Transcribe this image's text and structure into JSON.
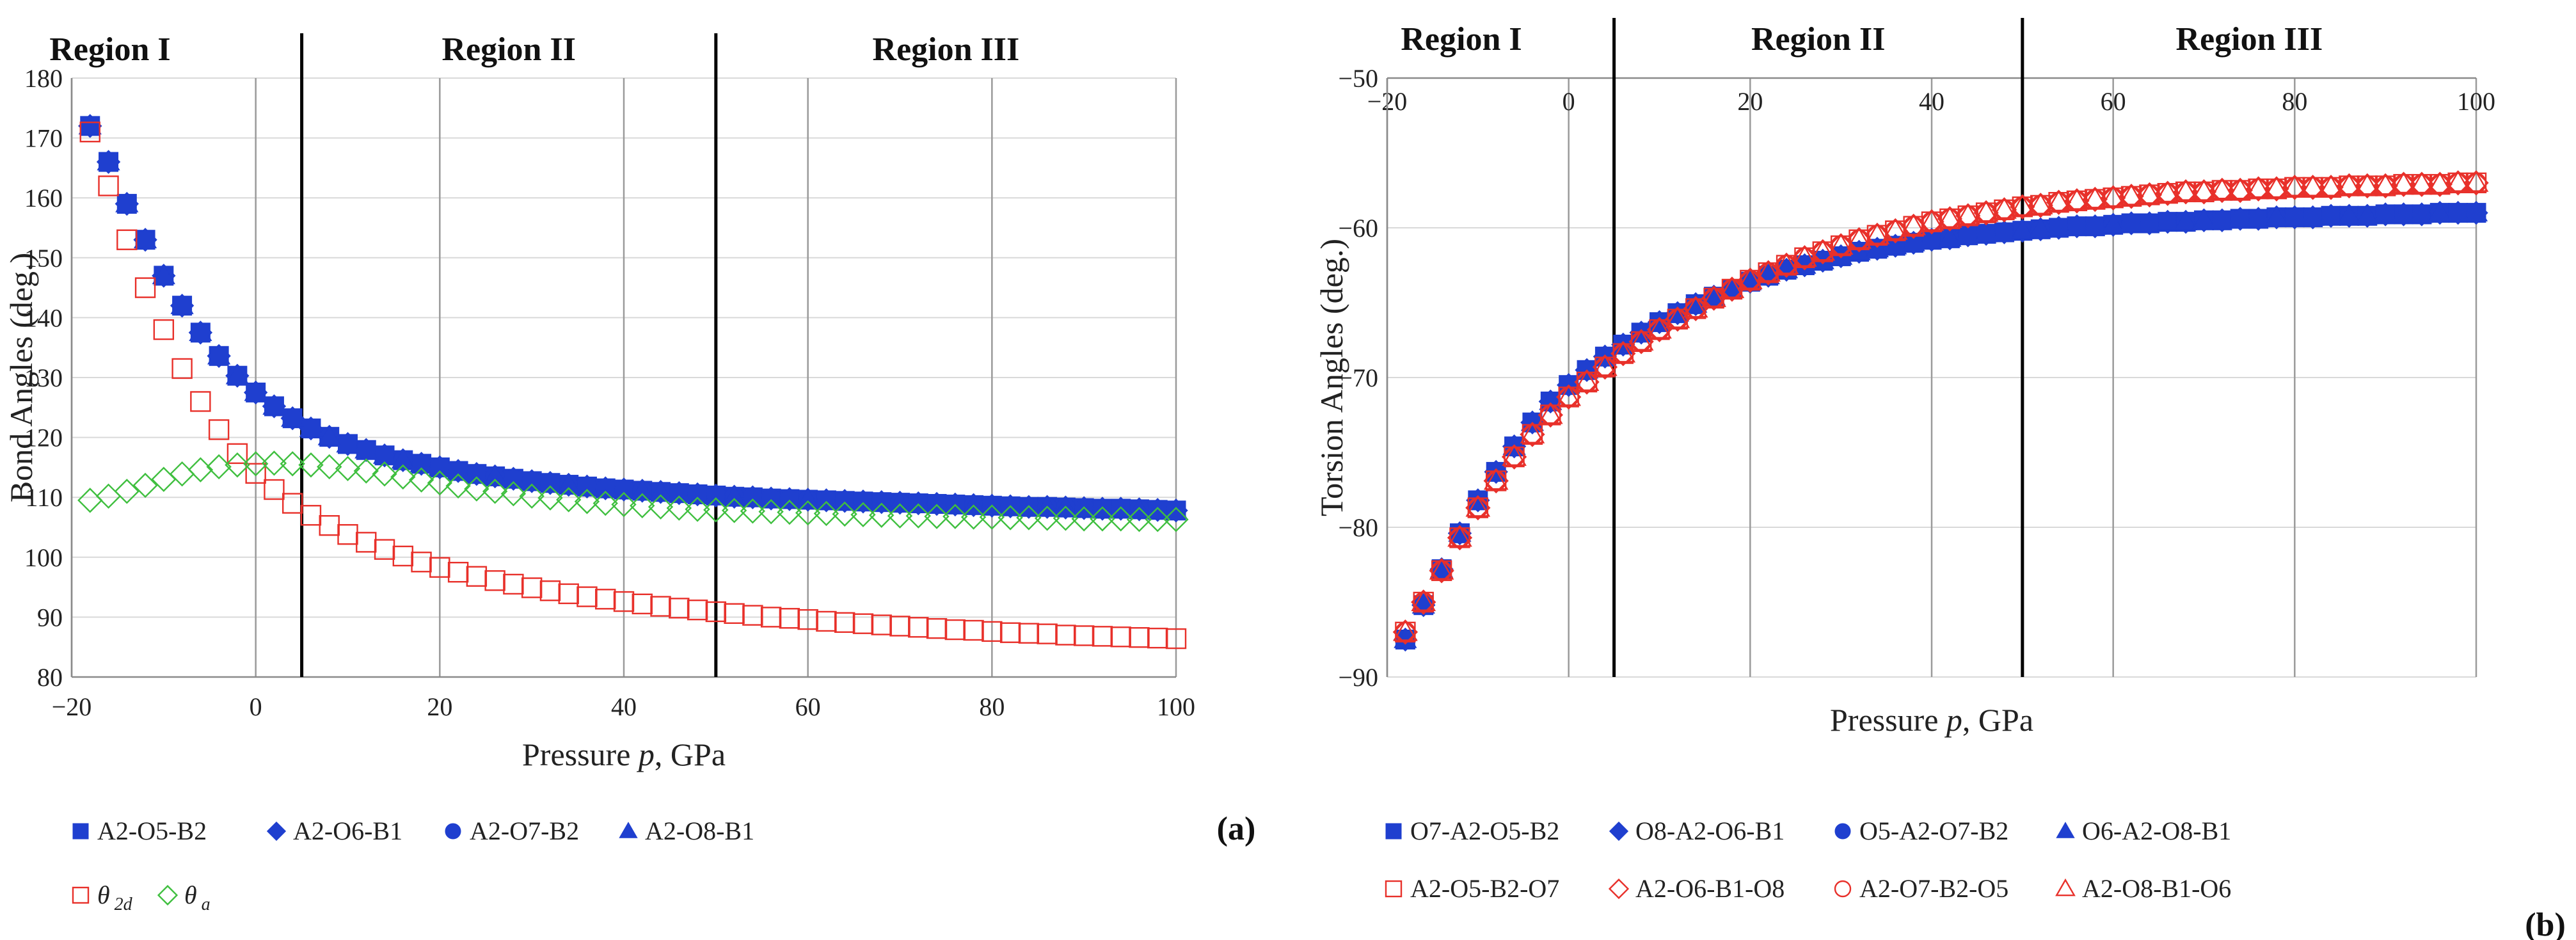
{
  "chart_data": [
    {
      "id": "a",
      "type": "scatter",
      "panel_label": "(a)",
      "title": "",
      "xlabel_main": "Pressure ",
      "xlabel_var": "p",
      "xlabel_tail": ", GPa",
      "ylabel": "Bond Angles (deg.)",
      "xlim": [
        -20,
        100
      ],
      "ylim": [
        80,
        180
      ],
      "xticks": [
        -20,
        0,
        20,
        40,
        60,
        80,
        100
      ],
      "xtick_labels": [
        "−20",
        "0",
        "20",
        "40",
        "60",
        "80",
        "100"
      ],
      "yticks": [
        80,
        90,
        100,
        110,
        120,
        130,
        140,
        150,
        160,
        170,
        180
      ],
      "region_boundaries": [
        5,
        50
      ],
      "regions": [
        {
          "label": "Region I",
          "from": -20,
          "to": 5
        },
        {
          "label": "Region II",
          "from": 5,
          "to": 50
        },
        {
          "label": "Region III",
          "from": 50,
          "to": 100
        }
      ],
      "x": [
        -18,
        -16,
        -14,
        -12,
        -10,
        -8,
        -6,
        -4,
        -2,
        0,
        2,
        4,
        6,
        8,
        10,
        12,
        14,
        16,
        18,
        20,
        22,
        24,
        26,
        28,
        30,
        32,
        34,
        36,
        38,
        40,
        42,
        44,
        46,
        48,
        50,
        52,
        54,
        56,
        58,
        60,
        62,
        64,
        66,
        68,
        70,
        72,
        74,
        76,
        78,
        80,
        82,
        84,
        86,
        88,
        90,
        92,
        94,
        96,
        98,
        100
      ],
      "series": [
        {
          "name": "A2-O5-B2",
          "color": "#1f3fcf",
          "marker": "square",
          "filled": true,
          "values": [
            172,
            166,
            159,
            153,
            147,
            142,
            137.5,
            133.6,
            130.3,
            127.5,
            125.2,
            123.2,
            121.5,
            120.1,
            118.9,
            117.9,
            117.0,
            116.2,
            115.6,
            115.0,
            114.4,
            113.9,
            113.5,
            113.1,
            112.7,
            112.4,
            112.1,
            111.8,
            111.5,
            111.3,
            111.1,
            110.9,
            110.7,
            110.5,
            110.3,
            110.1,
            110.0,
            109.8,
            109.7,
            109.6,
            109.5,
            109.4,
            109.3,
            109.2,
            109.1,
            109.0,
            108.9,
            108.8,
            108.7,
            108.6,
            108.5,
            108.4,
            108.4,
            108.3,
            108.2,
            108.1,
            108.1,
            108.0,
            107.9,
            107.8
          ]
        },
        {
          "name": "A2-O6-B1",
          "color": "#1f3fcf",
          "marker": "diamond",
          "filled": true,
          "values_same_as": "A2-O5-B2"
        },
        {
          "name": "A2-O7-B2",
          "color": "#1f3fcf",
          "marker": "circle",
          "filled": true,
          "values_same_as": "A2-O5-B2"
        },
        {
          "name": "A2-O8-B1",
          "color": "#1f3fcf",
          "marker": "triangle",
          "filled": true,
          "values_same_as": "A2-O5-B2"
        },
        {
          "name": "θ2d",
          "legend_main": "θ",
          "legend_sub": "2d",
          "color": "#e8302a",
          "marker": "square",
          "filled": false,
          "values": [
            171,
            162,
            153,
            145,
            138,
            131.5,
            126,
            121.3,
            117.3,
            114.0,
            111.3,
            109.0,
            107.0,
            105.3,
            103.8,
            102.5,
            101.3,
            100.2,
            99.2,
            98.3,
            97.5,
            96.8,
            96.1,
            95.5,
            94.9,
            94.4,
            93.9,
            93.4,
            93.0,
            92.6,
            92.2,
            91.8,
            91.5,
            91.2,
            90.9,
            90.6,
            90.3,
            90.0,
            89.8,
            89.6,
            89.3,
            89.1,
            88.9,
            88.7,
            88.5,
            88.3,
            88.1,
            87.9,
            87.8,
            87.6,
            87.4,
            87.3,
            87.2,
            87.0,
            86.9,
            86.8,
            86.7,
            86.6,
            86.5,
            86.4
          ]
        },
        {
          "name": "θa",
          "legend_main": "θ",
          "legend_sub": "a",
          "color": "#3fbf3f",
          "marker": "diamond",
          "filled": false,
          "values": [
            109.5,
            110.2,
            111.0,
            112.0,
            113.0,
            113.9,
            114.6,
            115.1,
            115.4,
            115.6,
            115.7,
            115.6,
            115.4,
            115.1,
            114.8,
            114.4,
            113.9,
            113.4,
            112.9,
            112.4,
            111.9,
            111.4,
            111.0,
            110.6,
            110.2,
            109.9,
            109.6,
            109.3,
            109.0,
            108.8,
            108.6,
            108.4,
            108.2,
            108.0,
            107.9,
            107.8,
            107.7,
            107.6,
            107.5,
            107.4,
            107.3,
            107.2,
            107.1,
            107.0,
            106.9,
            106.9,
            106.8,
            106.8,
            106.7,
            106.7,
            106.6,
            106.6,
            106.5,
            106.5,
            106.4,
            106.4,
            106.4,
            106.3,
            106.3,
            106.3
          ]
        }
      ]
    },
    {
      "id": "b",
      "type": "scatter",
      "panel_label": "(b)",
      "title": "",
      "xlabel_main": "Pressure ",
      "xlabel_var": "p",
      "xlabel_tail": ", GPa",
      "ylabel": "Torsion Angles (deg.)",
      "xlim": [
        -20,
        100
      ],
      "ylim": [
        -90,
        -50
      ],
      "x_axis_position": "top",
      "xticks": [
        -20,
        0,
        20,
        40,
        60,
        80,
        100
      ],
      "xtick_labels": [
        "−20",
        "0",
        "20",
        "40",
        "60",
        "80",
        "100"
      ],
      "yticks": [
        -90,
        -80,
        -70,
        -60,
        -50
      ],
      "ytick_labels": [
        "−90",
        "−80",
        "−70",
        "−60",
        "−50"
      ],
      "region_boundaries": [
        5,
        50
      ],
      "regions": [
        {
          "label": "Region I",
          "from": -20,
          "to": 5
        },
        {
          "label": "Region II",
          "from": 5,
          "to": 50
        },
        {
          "label": "Region III",
          "from": 50,
          "to": 100
        }
      ],
      "x": [
        -18,
        -16,
        -14,
        -12,
        -10,
        -8,
        -6,
        -4,
        -2,
        0,
        2,
        4,
        6,
        8,
        10,
        12,
        14,
        16,
        18,
        20,
        22,
        24,
        26,
        28,
        30,
        32,
        34,
        36,
        38,
        40,
        42,
        44,
        46,
        48,
        50,
        52,
        54,
        56,
        58,
        60,
        62,
        64,
        66,
        68,
        70,
        72,
        74,
        76,
        78,
        80,
        82,
        84,
        86,
        88,
        90,
        92,
        94,
        96,
        98,
        100
      ],
      "series": [
        {
          "name": "O7-A2-O5-B2",
          "color": "#1f3fcf",
          "marker": "square",
          "filled": true,
          "values": [
            -87.5,
            -85.2,
            -82.8,
            -80.4,
            -78.2,
            -76.3,
            -74.6,
            -73.0,
            -71.6,
            -70.5,
            -69.5,
            -68.6,
            -67.8,
            -67.0,
            -66.3,
            -65.7,
            -65.1,
            -64.6,
            -64.1,
            -63.6,
            -63.2,
            -62.8,
            -62.5,
            -62.2,
            -61.9,
            -61.6,
            -61.4,
            -61.2,
            -61.0,
            -60.8,
            -60.7,
            -60.5,
            -60.4,
            -60.3,
            -60.2,
            -60.1,
            -60.0,
            -59.9,
            -59.9,
            -59.8,
            -59.7,
            -59.7,
            -59.6,
            -59.6,
            -59.5,
            -59.5,
            -59.4,
            -59.4,
            -59.3,
            -59.3,
            -59.3,
            -59.2,
            -59.2,
            -59.2,
            -59.1,
            -59.1,
            -59.1,
            -59.0,
            -59.0,
            -59.0
          ]
        },
        {
          "name": "O8-A2-O6-B1",
          "color": "#1f3fcf",
          "marker": "diamond",
          "filled": true,
          "values_same_as": "O7-A2-O5-B2"
        },
        {
          "name": "O5-A2-O7-B2",
          "color": "#1f3fcf",
          "marker": "circle",
          "filled": true,
          "values_same_as": "O7-A2-O5-B2"
        },
        {
          "name": "O6-A2-O8-B1",
          "color": "#1f3fcf",
          "marker": "triangle",
          "filled": true,
          "values_same_as": "O7-A2-O5-B2"
        },
        {
          "name": "A2-O5-B2-O7",
          "color": "#e8302a",
          "marker": "square",
          "filled": false,
          "values": [
            -87.0,
            -85.0,
            -82.9,
            -80.7,
            -78.7,
            -76.9,
            -75.3,
            -73.8,
            -72.5,
            -71.3,
            -70.3,
            -69.3,
            -68.4,
            -67.6,
            -66.8,
            -66.1,
            -65.4,
            -64.7,
            -64.1,
            -63.5,
            -63.0,
            -62.5,
            -62.0,
            -61.6,
            -61.2,
            -60.8,
            -60.5,
            -60.2,
            -59.9,
            -59.6,
            -59.4,
            -59.2,
            -59.0,
            -58.8,
            -58.6,
            -58.5,
            -58.3,
            -58.2,
            -58.1,
            -58.0,
            -57.9,
            -57.8,
            -57.7,
            -57.6,
            -57.6,
            -57.5,
            -57.5,
            -57.4,
            -57.4,
            -57.3,
            -57.3,
            -57.3,
            -57.2,
            -57.2,
            -57.2,
            -57.1,
            -57.1,
            -57.1,
            -57.0,
            -57.0
          ]
        },
        {
          "name": "A2-O6-B1-O8",
          "color": "#e8302a",
          "marker": "diamond",
          "filled": false,
          "values_same_as": "A2-O5-B2-O7"
        },
        {
          "name": "A2-O7-B2-O5",
          "color": "#e8302a",
          "marker": "circle",
          "filled": false,
          "values_same_as": "A2-O5-B2-O7"
        },
        {
          "name": "A2-O8-B1-O6",
          "color": "#e8302a",
          "marker": "triangle",
          "filled": false,
          "values_same_as": "A2-O5-B2-O7"
        }
      ]
    }
  ]
}
